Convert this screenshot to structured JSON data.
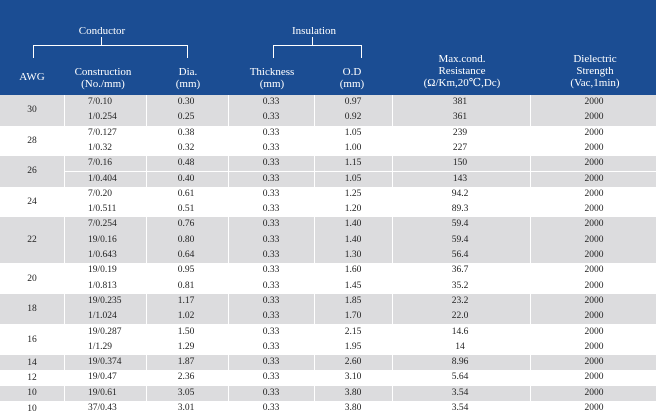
{
  "header": {
    "conductor": "Conductor",
    "insulation": "Insulation",
    "awg": "AWG",
    "construction_1": "Construction",
    "construction_2": "(No./mm)",
    "dia_1": "Dia.",
    "dia_2": "(mm)",
    "thickness_1": "Thickness",
    "thickness_2": "(mm)",
    "od_1": "O.D",
    "od_2": "(mm)",
    "resistance_1": "Max.cond.",
    "resistance_2": "Resistance",
    "resistance_3": "(Ω/Km,20℃,Dc)",
    "dielectric_1": "Dielectric",
    "dielectric_2": "Strength",
    "dielectric_3": "(Vac,1min)"
  },
  "groups": [
    {
      "awg": "30",
      "rows": [
        {
          "construction": "7/0.10",
          "dia": "0.30",
          "thickness": "0.33",
          "od": "0.97",
          "resistance": "381",
          "dielectric": "2000"
        },
        {
          "construction": "1/0.254",
          "dia": "0.25",
          "thickness": "0.33",
          "od": "0.92",
          "resistance": "361",
          "dielectric": "2000"
        }
      ]
    },
    {
      "awg": "28",
      "rows": [
        {
          "construction": "7/0.127",
          "dia": "0.38",
          "thickness": "0.33",
          "od": "1.05",
          "resistance": "239",
          "dielectric": "2000"
        },
        {
          "construction": "1/0.32",
          "dia": "0.32",
          "thickness": "0.33",
          "od": "1.00",
          "resistance": "227",
          "dielectric": "2000"
        }
      ]
    },
    {
      "awg": "26",
      "rows": [
        {
          "construction": "7/0.16",
          "dia": "0.48",
          "thickness": "0.33",
          "od": "1.15",
          "resistance": "150",
          "dielectric": "2000"
        },
        {
          "construction": "1/0.404",
          "dia": "0.40",
          "thickness": "0.33",
          "od": "1.05",
          "resistance": "143",
          "dielectric": "2000"
        }
      ]
    },
    {
      "awg": "24",
      "rows": [
        {
          "construction": "7/0.20",
          "dia": "0.61",
          "thickness": "0.33",
          "od": "1.25",
          "resistance": "94.2",
          "dielectric": "2000"
        },
        {
          "construction": "1/0.511",
          "dia": "0.51",
          "thickness": "0.33",
          "od": "1.20",
          "resistance": "89.3",
          "dielectric": "2000"
        }
      ]
    },
    {
      "awg": "22",
      "rows": [
        {
          "construction": "7/0.254",
          "dia": "0.76",
          "thickness": "0.33",
          "od": "1.40",
          "resistance": "59.4",
          "dielectric": "2000"
        },
        {
          "construction": "19/0.16",
          "dia": "0.80",
          "thickness": "0.33",
          "od": "1.40",
          "resistance": "59.4",
          "dielectric": "2000"
        },
        {
          "construction": "1/0.643",
          "dia": "0.64",
          "thickness": "0.33",
          "od": "1.30",
          "resistance": "56.4",
          "dielectric": "2000"
        }
      ]
    },
    {
      "awg": "20",
      "rows": [
        {
          "construction": "19/0.19",
          "dia": "0.95",
          "thickness": "0.33",
          "od": "1.60",
          "resistance": "36.7",
          "dielectric": "2000"
        },
        {
          "construction": "1/0.813",
          "dia": "0.81",
          "thickness": "0.33",
          "od": "1.45",
          "resistance": "35.2",
          "dielectric": "2000"
        }
      ]
    },
    {
      "awg": "18",
      "rows": [
        {
          "construction": "19/0.235",
          "dia": "1.17",
          "thickness": "0.33",
          "od": "1.85",
          "resistance": "23.2",
          "dielectric": "2000"
        },
        {
          "construction": "1/1.024",
          "dia": "1.02",
          "thickness": "0.33",
          "od": "1.70",
          "resistance": "22.0",
          "dielectric": "2000"
        }
      ]
    },
    {
      "awg": "16",
      "rows": [
        {
          "construction": "19/0.287",
          "dia": "1.50",
          "thickness": "0.33",
          "od": "2.15",
          "resistance": "14.6",
          "dielectric": "2000"
        },
        {
          "construction": "1/1.29",
          "dia": "1.29",
          "thickness": "0.33",
          "od": "1.95",
          "resistance": "14",
          "dielectric": "2000"
        }
      ]
    },
    {
      "awg": "14",
      "rows": [
        {
          "construction": "19/0.374",
          "dia": "1.87",
          "thickness": "0.33",
          "od": "2.60",
          "resistance": "8.96",
          "dielectric": "2000"
        }
      ]
    },
    {
      "awg": "12",
      "rows": [
        {
          "construction": "19/0.47",
          "dia": "2.36",
          "thickness": "0.33",
          "od": "3.10",
          "resistance": "5.64",
          "dielectric": "2000"
        }
      ]
    },
    {
      "awg": "10",
      "rows": [
        {
          "construction": "19/0.61",
          "dia": "3.05",
          "thickness": "0.33",
          "od": "3.80",
          "resistance": "3.54",
          "dielectric": "2000"
        }
      ]
    },
    {
      "awg": "10",
      "rows": [
        {
          "construction": "37/0.43",
          "dia": "3.01",
          "thickness": "0.33",
          "od": "3.80",
          "resistance": "3.54",
          "dielectric": "2000"
        }
      ]
    }
  ],
  "colors": {
    "header_bg": "#1b4d93",
    "row_shaded": "#dcdcde",
    "row_plain": "#ffffff"
  }
}
